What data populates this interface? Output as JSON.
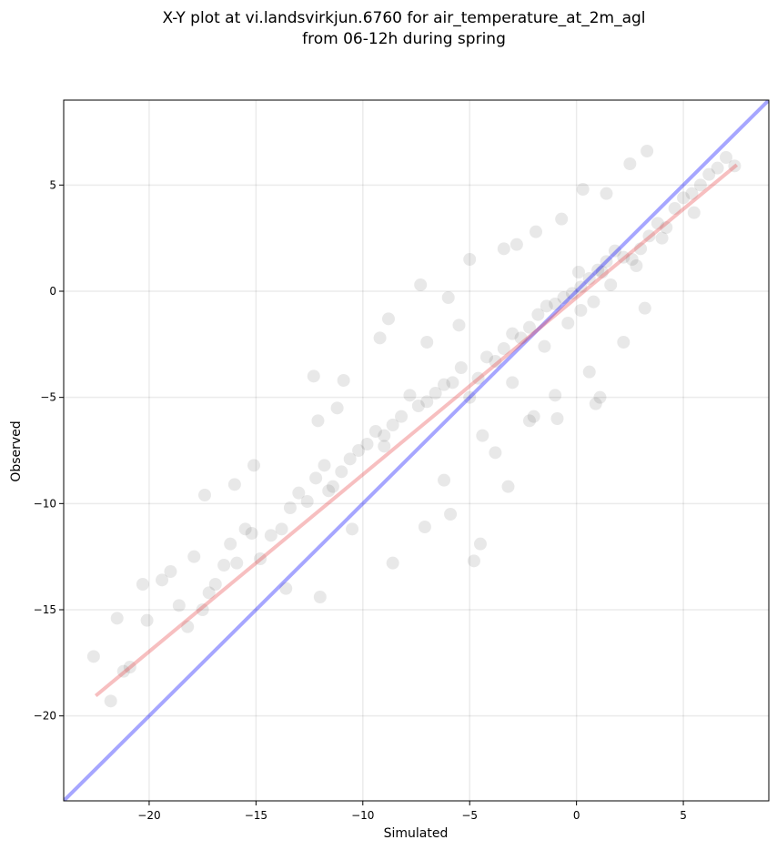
{
  "chart_data": {
    "type": "scatter",
    "title_lines": [
      "X-Y plot at vi.landsvirkjun.6760 for air_temperature_at_2m_agl",
      "from 06-12h during spring"
    ],
    "xlabel": "Simulated",
    "ylabel": "Observed",
    "xlim": [
      -24,
      9
    ],
    "ylim": [
      -24,
      9
    ],
    "xticks": [
      -20,
      -15,
      -10,
      -5,
      0,
      5
    ],
    "yticks": [
      -20,
      -15,
      -10,
      -5,
      0,
      5
    ],
    "xtick_labels": [
      "−20",
      "−15",
      "−10",
      "−5",
      "0",
      "5"
    ],
    "ytick_labels": [
      "−20",
      "−15",
      "−10",
      "−5",
      "0",
      "5"
    ],
    "grid": true,
    "point_color": "#000000",
    "point_opacity": 0.09,
    "series": [
      {
        "type": "line",
        "role": "one-to-one",
        "color": "#0000ff",
        "x": [
          -24,
          9
        ],
        "y": [
          -24,
          9
        ]
      },
      {
        "type": "line",
        "role": "fit",
        "color": "#e8474a",
        "x": [
          -22.5,
          7.5
        ],
        "y": [
          -19.05,
          5.95
        ]
      },
      {
        "type": "scatter",
        "x": [
          -22.6,
          -21.8,
          -21.2,
          -20.9,
          -21.5,
          -20.1,
          -20.3,
          -19.4,
          -19.0,
          -18.6,
          -18.2,
          -17.9,
          -17.5,
          -17.2,
          -16.9,
          -16.5,
          -16.2,
          -15.9,
          -15.5,
          -15.2,
          -14.8,
          -14.3,
          -13.8,
          -13.4,
          -13.0,
          -12.6,
          -12.2,
          -11.8,
          -11.4,
          -11.0,
          -10.6,
          -10.2,
          -9.8,
          -9.4,
          -9.0,
          -8.6,
          -8.2,
          -7.8,
          -7.4,
          -7.0,
          -6.6,
          -6.2,
          -5.8,
          -5.4,
          -5.0,
          -4.6,
          -4.2,
          -3.8,
          -3.4,
          -3.0,
          -2.6,
          -2.2,
          -1.8,
          -1.4,
          -1.0,
          -0.6,
          -0.2,
          0.2,
          0.6,
          1.0,
          1.4,
          1.8,
          2.2,
          2.6,
          3.0,
          3.4,
          3.8,
          4.2,
          4.6,
          5.0,
          5.4,
          5.8,
          6.2,
          6.6,
          7.0,
          7.4,
          -17.4,
          -16.0,
          -15.1,
          -12.3,
          -12.1,
          -11.2,
          -10.9,
          -9.2,
          -8.8,
          -7.3,
          -6.0,
          -5.0,
          -3.4,
          -2.8,
          -1.9,
          -0.7,
          0.3,
          1.4,
          2.5,
          3.3,
          -4.8,
          -5.9,
          -4.5,
          -3.2,
          -0.9,
          0.6,
          1.1,
          -2.2,
          -8.6,
          -7.1,
          -12.0,
          -13.6,
          -1.0,
          0.9,
          2.2,
          3.2,
          -6.2,
          -4.4,
          -3.8,
          -2.0,
          -9.0,
          -10.5,
          -11.6,
          -7.0,
          -5.5,
          -3.0,
          0.1,
          0.8,
          1.6,
          2.8,
          4.0,
          5.5,
          -0.4,
          -1.5,
          0.2,
          1.2
        ],
        "y": [
          -17.2,
          -19.3,
          -17.9,
          -17.7,
          -15.4,
          -15.5,
          -13.8,
          -13.6,
          -13.2,
          -14.8,
          -15.8,
          -12.5,
          -15.0,
          -14.2,
          -13.8,
          -12.9,
          -11.9,
          -12.8,
          -11.2,
          -11.4,
          -12.6,
          -11.5,
          -11.2,
          -10.2,
          -9.5,
          -9.9,
          -8.8,
          -8.2,
          -9.2,
          -8.5,
          -7.9,
          -7.5,
          -7.2,
          -6.6,
          -6.8,
          -6.3,
          -5.9,
          -4.9,
          -5.4,
          -5.2,
          -4.8,
          -4.4,
          -4.3,
          -3.6,
          -5.0,
          -4.1,
          -3.1,
          -3.3,
          -2.7,
          -2.0,
          -2.2,
          -1.7,
          -1.1,
          -0.7,
          -0.6,
          -0.3,
          -0.1,
          0.2,
          0.6,
          1.0,
          1.4,
          1.9,
          1.6,
          1.5,
          2.0,
          2.6,
          3.2,
          3.0,
          3.9,
          4.4,
          4.6,
          5.0,
          5.5,
          5.8,
          6.3,
          5.9,
          -9.6,
          -9.1,
          -8.2,
          -4.0,
          -6.1,
          -5.5,
          -4.2,
          -2.2,
          -1.3,
          0.3,
          -0.3,
          1.5,
          2.0,
          2.2,
          2.8,
          3.4,
          4.8,
          4.6,
          6.0,
          6.6,
          -12.7,
          -10.5,
          -11.9,
          -9.2,
          -6.0,
          -3.8,
          -5.0,
          -6.1,
          -12.8,
          -11.1,
          -14.4,
          -14.0,
          -4.9,
          -5.3,
          -2.4,
          -0.8,
          -8.9,
          -6.8,
          -7.6,
          -5.9,
          -7.3,
          -11.2,
          -9.4,
          -2.4,
          -1.6,
          -4.3,
          0.9,
          -0.5,
          0.3,
          1.2,
          2.5,
          3.7,
          -1.5,
          -2.6,
          -0.9,
          0.9
        ]
      }
    ]
  }
}
